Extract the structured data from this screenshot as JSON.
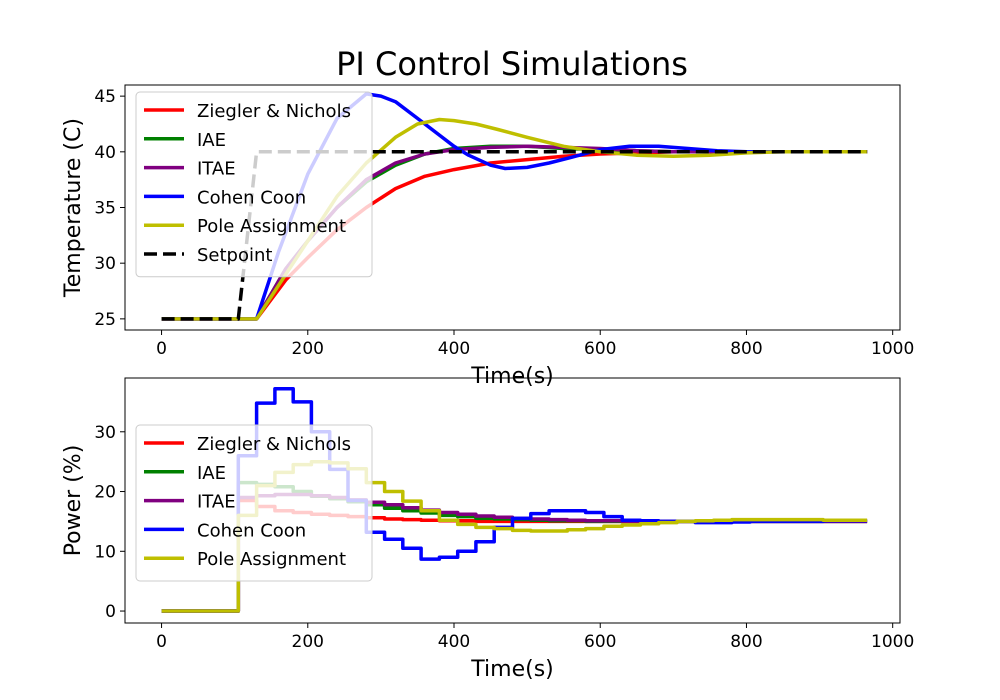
{
  "figure": {
    "title": "PI Control Simulations"
  },
  "colors": {
    "zn": "#ff0000",
    "iae": "#008000",
    "itae": "#800080",
    "cc": "#0000ff",
    "pa": "#bfbf00",
    "sp": "#000000"
  },
  "chart_data": [
    {
      "type": "line",
      "title": "PI Control Simulations",
      "xlabel": "Time(s)",
      "ylabel": "Temperature (C)",
      "xlim": [
        -50,
        1010
      ],
      "ylim": [
        24,
        46
      ],
      "xticks": [
        0,
        200,
        400,
        600,
        800,
        1000
      ],
      "yticks": [
        25,
        30,
        35,
        40,
        45
      ],
      "grid": false,
      "legend_position": "upper-left",
      "series": [
        {
          "name": "Ziegler & Nichols",
          "color": "#ff0000",
          "dash": "solid",
          "x": [
            0,
            130,
            170,
            200,
            240,
            280,
            320,
            360,
            400,
            450,
            500,
            550,
            600,
            650,
            700,
            800,
            965
          ],
          "y": [
            25,
            25,
            28.5,
            30.5,
            33,
            35,
            36.7,
            37.8,
            38.4,
            39,
            39.3,
            39.6,
            39.8,
            39.9,
            40,
            40,
            40
          ]
        },
        {
          "name": "IAE",
          "color": "#008000",
          "dash": "solid",
          "x": [
            0,
            130,
            170,
            200,
            240,
            280,
            320,
            360,
            400,
            450,
            500,
            550,
            600,
            650,
            700,
            800,
            965
          ],
          "y": [
            25,
            25,
            29.5,
            32,
            35,
            37.3,
            38.8,
            39.8,
            40.3,
            40.5,
            40.5,
            40.3,
            40.2,
            40.1,
            40,
            40,
            40
          ]
        },
        {
          "name": "ITAE",
          "color": "#800080",
          "dash": "solid",
          "x": [
            0,
            130,
            170,
            200,
            240,
            280,
            320,
            360,
            400,
            450,
            500,
            550,
            600,
            650,
            700,
            800,
            965
          ],
          "y": [
            25,
            25,
            29.5,
            32,
            35,
            37.5,
            39,
            39.8,
            40.2,
            40.4,
            40.5,
            40.4,
            40.3,
            40.1,
            40,
            40,
            40
          ]
        },
        {
          "name": "Cohen Coon",
          "color": "#0000ff",
          "dash": "solid",
          "x": [
            0,
            130,
            160,
            200,
            240,
            280,
            300,
            320,
            350,
            380,
            400,
            420,
            450,
            470,
            500,
            530,
            560,
            600,
            640,
            680,
            720,
            760,
            800,
            850,
            965
          ],
          "y": [
            25,
            25,
            31,
            38,
            43,
            45.2,
            45,
            44.5,
            43,
            41.5,
            40.5,
            39.7,
            38.8,
            38.5,
            38.6,
            39,
            39.5,
            40.2,
            40.5,
            40.5,
            40.3,
            40.1,
            40,
            40,
            40
          ]
        },
        {
          "name": "Pole Assignment",
          "color": "#bfbf00",
          "dash": "solid",
          "x": [
            0,
            130,
            170,
            200,
            240,
            280,
            320,
            350,
            380,
            400,
            430,
            460,
            500,
            550,
            600,
            650,
            700,
            750,
            800,
            850,
            965
          ],
          "y": [
            25,
            25,
            29,
            32,
            36,
            39,
            41.3,
            42.5,
            42.9,
            42.8,
            42.5,
            42,
            41.3,
            40.5,
            40,
            39.7,
            39.6,
            39.7,
            39.9,
            40,
            40
          ]
        },
        {
          "name": "Setpoint",
          "color": "#000000",
          "dash": "dashed",
          "x": [
            0,
            105,
            130,
            965
          ],
          "y": [
            25,
            25,
            40,
            40
          ]
        }
      ]
    },
    {
      "type": "line",
      "xlabel": "Time(s)",
      "ylabel": "Power (%)",
      "xlim": [
        -50,
        1010
      ],
      "ylim": [
        -2,
        39
      ],
      "xticks": [
        0,
        200,
        400,
        600,
        800,
        1000
      ],
      "yticks": [
        0,
        10,
        20,
        30
      ],
      "grid": false,
      "legend_position": "upper-left",
      "step_width": 25,
      "series": [
        {
          "name": "Ziegler & Nichols",
          "color": "#ff0000",
          "dash": "solid",
          "x": [
            0,
            25,
            50,
            75,
            105,
            130,
            155,
            180,
            205,
            230,
            255,
            280,
            305,
            330,
            355,
            380,
            405,
            430,
            455,
            480,
            505,
            530,
            555,
            580,
            605,
            630,
            655,
            680,
            705,
            730,
            755,
            780,
            805,
            830,
            855,
            880,
            905,
            930,
            955
          ],
          "y": [
            0,
            0,
            0,
            0,
            18.5,
            17.5,
            16.8,
            16.5,
            16.2,
            16,
            15.8,
            15.6,
            15.4,
            15.3,
            15.2,
            15.1,
            15.1,
            15,
            15,
            15,
            15,
            15,
            15,
            15,
            15,
            15,
            15,
            15,
            15,
            15,
            15,
            15,
            15,
            15,
            15,
            15,
            15,
            15,
            15
          ]
        },
        {
          "name": "IAE",
          "color": "#008000",
          "dash": "solid",
          "x": [
            0,
            25,
            50,
            75,
            105,
            130,
            155,
            180,
            205,
            230,
            255,
            280,
            305,
            330,
            355,
            380,
            405,
            430,
            455,
            480,
            505,
            530,
            555,
            580,
            605,
            630,
            655,
            680,
            705,
            730,
            755,
            780,
            805,
            830,
            855,
            880,
            905,
            930,
            955
          ],
          "y": [
            0,
            0,
            0,
            0,
            21.5,
            21.2,
            20.8,
            20,
            19.2,
            18.8,
            18.3,
            17.8,
            17.2,
            16.8,
            16.4,
            16,
            15.8,
            15.5,
            15.4,
            15.3,
            15.2,
            15.1,
            15.1,
            15,
            15,
            15,
            15,
            15,
            15,
            15,
            15,
            15,
            15,
            15,
            15,
            15,
            15,
            15,
            15
          ]
        },
        {
          "name": "ITAE",
          "color": "#800080",
          "dash": "solid",
          "x": [
            0,
            25,
            50,
            75,
            105,
            130,
            155,
            180,
            205,
            230,
            255,
            280,
            305,
            330,
            355,
            380,
            405,
            430,
            455,
            480,
            505,
            530,
            555,
            580,
            605,
            630,
            655,
            680,
            705,
            730,
            755,
            780,
            805,
            830,
            855,
            880,
            905,
            930,
            955
          ],
          "y": [
            0,
            0,
            0,
            0,
            19,
            19.3,
            19.5,
            19.5,
            19.3,
            19,
            18.6,
            18.2,
            17.8,
            17.3,
            16.9,
            16.5,
            16.2,
            15.9,
            15.7,
            15.5,
            15.4,
            15.3,
            15.2,
            15.1,
            15.1,
            15,
            15,
            15,
            15,
            15,
            15,
            15,
            15,
            15,
            15,
            15,
            15,
            15,
            15
          ]
        },
        {
          "name": "Cohen Coon",
          "color": "#0000ff",
          "dash": "solid",
          "x": [
            0,
            25,
            50,
            75,
            105,
            130,
            155,
            180,
            205,
            230,
            255,
            280,
            305,
            330,
            355,
            380,
            405,
            430,
            455,
            480,
            505,
            530,
            555,
            580,
            605,
            630,
            655,
            680,
            705,
            730,
            755,
            780,
            805,
            830,
            855,
            880,
            905,
            930,
            955
          ],
          "y": [
            0,
            0,
            0,
            0,
            26,
            34.8,
            37.2,
            35,
            30,
            23.7,
            18.5,
            13.2,
            12,
            10.5,
            8.7,
            9,
            10,
            11.6,
            14,
            15.5,
            16.3,
            16.8,
            16.8,
            16.5,
            15.8,
            15.2,
            15.1,
            15,
            15,
            14.8,
            14.8,
            14.9,
            15,
            15,
            15,
            15,
            15.1,
            15.1,
            15.1
          ]
        },
        {
          "name": "Pole Assignment",
          "color": "#bfbf00",
          "dash": "solid",
          "x": [
            0,
            25,
            50,
            75,
            105,
            130,
            155,
            180,
            205,
            230,
            255,
            280,
            305,
            330,
            355,
            380,
            405,
            430,
            455,
            480,
            505,
            530,
            555,
            580,
            605,
            630,
            655,
            680,
            705,
            730,
            755,
            780,
            805,
            830,
            855,
            880,
            905,
            930,
            955
          ],
          "y": [
            0,
            0,
            0,
            0,
            16,
            21,
            23.2,
            24.5,
            25,
            24.8,
            23.8,
            21.5,
            20,
            18.4,
            16.8,
            15.2,
            14.5,
            14,
            13.8,
            13.5,
            13.4,
            13.4,
            13.6,
            13.8,
            14.2,
            14.4,
            14.6,
            14.8,
            15,
            15.1,
            15.2,
            15.3,
            15.3,
            15.3,
            15.3,
            15.3,
            15.2,
            15.2,
            15.2
          ]
        }
      ]
    }
  ]
}
